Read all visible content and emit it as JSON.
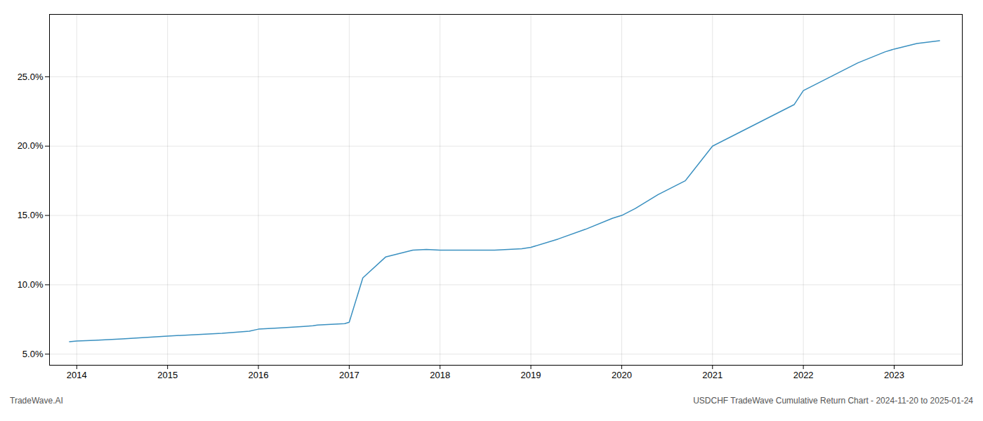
{
  "chart_data": {
    "type": "line",
    "annotations": [
      "TradeWave.AI",
      "USDCHF TradeWave Cumulative Return Chart - 2024-11-20 to 2025-01-24"
    ],
    "x": [
      2013.92,
      2014.0,
      2014.2,
      2014.5,
      2014.75,
      2015.0,
      2015.3,
      2015.6,
      2015.9,
      2016.0,
      2016.25,
      2016.5,
      2016.6,
      2016.65,
      2016.8,
      2016.95,
      2017.0,
      2017.15,
      2017.4,
      2017.7,
      2017.85,
      2018.0,
      2018.3,
      2018.6,
      2018.9,
      2019.0,
      2019.3,
      2019.6,
      2019.9,
      2020.0,
      2020.15,
      2020.4,
      2020.7,
      2021.0,
      2021.3,
      2021.6,
      2021.9,
      2022.0,
      2022.3,
      2022.6,
      2022.9,
      2023.0,
      2023.25,
      2023.5
    ],
    "values": [
      5.9,
      5.95,
      6.0,
      6.1,
      6.2,
      6.3,
      6.4,
      6.5,
      6.65,
      6.8,
      6.9,
      7.0,
      7.05,
      7.1,
      7.15,
      7.2,
      7.3,
      10.5,
      12.0,
      12.5,
      12.55,
      12.5,
      12.5,
      12.5,
      12.6,
      12.7,
      13.3,
      14.0,
      14.8,
      15.0,
      15.5,
      16.5,
      17.5,
      20.0,
      21.0,
      22.0,
      23.0,
      24.0,
      25.0,
      26.0,
      26.8,
      27.0,
      27.4,
      27.6
    ],
    "color": "#3a90c0",
    "xlim": [
      2013.7,
      2023.75
    ],
    "xticks": [
      2014,
      2015,
      2016,
      2017,
      2018,
      2019,
      2020,
      2021,
      2022,
      2023
    ],
    "ylim": [
      4.2,
      29.5
    ],
    "yticks": [
      {
        "value": 5.0,
        "label": "5.0%"
      },
      {
        "value": 10.0,
        "label": "10.0%"
      },
      {
        "value": 15.0,
        "label": "15.0%"
      },
      {
        "value": 20.0,
        "label": "20.0%"
      },
      {
        "value": 25.0,
        "label": "25.0%"
      }
    ],
    "grid": true
  }
}
